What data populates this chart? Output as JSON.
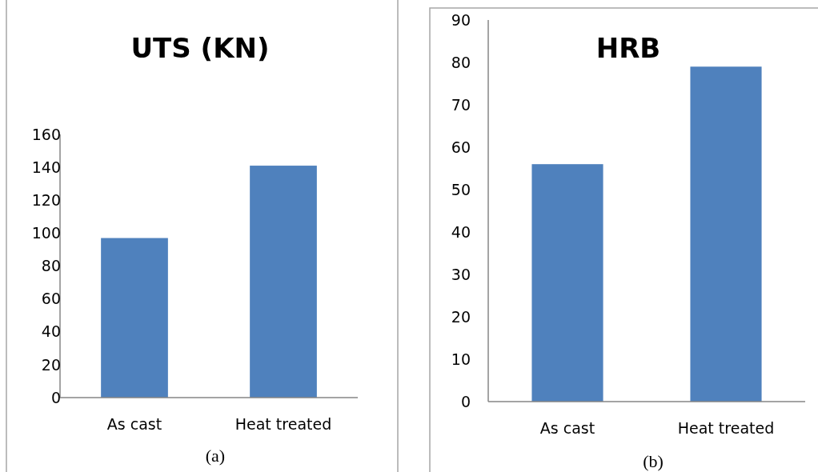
{
  "chart_data": [
    {
      "type": "bar",
      "title": "UTS (KN)",
      "categories": [
        "As cast",
        "Heat treated"
      ],
      "values": [
        97,
        141
      ],
      "color": "#4f81bd",
      "ylim": [
        0,
        160
      ],
      "yticks": [
        0,
        20,
        40,
        60,
        80,
        100,
        120,
        140,
        160
      ],
      "grid": false,
      "annotations": [
        "(a)"
      ]
    },
    {
      "type": "bar",
      "title": "HRB",
      "categories": [
        "As cast",
        "Heat treated"
      ],
      "values": [
        56,
        79
      ],
      "color": "#4f81bd",
      "ylim": [
        0,
        90
      ],
      "yticks": [
        0,
        10,
        20,
        30,
        40,
        50,
        60,
        70,
        80,
        90
      ],
      "grid": false,
      "annotations": [
        "(b)"
      ]
    }
  ]
}
